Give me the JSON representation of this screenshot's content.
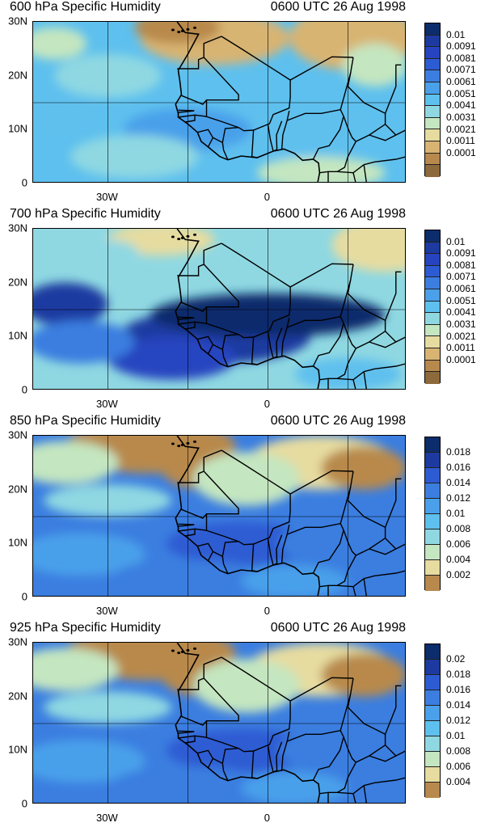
{
  "x_tick_labels": [
    "30W",
    "0"
  ],
  "y_tick_labels": [
    "30N",
    "20N",
    "10N",
    "0"
  ],
  "panels": [
    {
      "title": "600 hPa Specific Humidity",
      "time": "0600 UTC 26 Aug 1998",
      "colorbar_labels": [
        "0.01",
        "0.0091",
        "0.0081",
        "0.0071",
        "0.0061",
        "0.0051",
        "0.0041",
        "0.0031",
        "0.0021",
        "0.0011",
        "0.0001"
      ],
      "colorbar_colors": [
        "#0c2c6c",
        "#1c3aa0",
        "#2744c0",
        "#2d5bd3",
        "#3b7ee0",
        "#4aa0ea",
        "#5ec0ee",
        "#8fd8e2",
        "#c4e6c0",
        "#e6dca0",
        "#d8b472",
        "#b8894c",
        "#8c6a3c"
      ],
      "regime": "mid"
    },
    {
      "title": "700 hPa Specific Humidity",
      "time": "0600 UTC 26 Aug 1998",
      "colorbar_labels": [
        "0.01",
        "0.0091",
        "0.0081",
        "0.0071",
        "0.0061",
        "0.0051",
        "0.0041",
        "0.0031",
        "0.0021",
        "0.0011",
        "0.0001"
      ],
      "colorbar_colors": [
        "#0c2c6c",
        "#1c3aa0",
        "#2744c0",
        "#2d5bd3",
        "#3b7ee0",
        "#4aa0ea",
        "#5ec0ee",
        "#8fd8e2",
        "#c4e6c0",
        "#e6dca0",
        "#d8b472",
        "#b8894c",
        "#8c6a3c"
      ],
      "regime": "wet"
    },
    {
      "title": "850 hPa Specific Humidity",
      "time": "0600 UTC 26 Aug 1998",
      "colorbar_labels": [
        "0.018",
        "0.016",
        "0.014",
        "0.012",
        "0.01",
        "0.008",
        "0.006",
        "0.004",
        "0.002"
      ],
      "colorbar_colors": [
        "#0c2c6c",
        "#1c3aa0",
        "#2d5bd3",
        "#3b7ee0",
        "#4aa0ea",
        "#5ec0ee",
        "#8fd8e2",
        "#c4e6c0",
        "#e6dca0",
        "#b8894c"
      ],
      "regime": "low"
    },
    {
      "title": "925 hPa Specific Humidity",
      "time": "0600 UTC 26 Aug 1998",
      "colorbar_labels": [
        "0.02",
        "0.018",
        "0.016",
        "0.014",
        "0.012",
        "0.01",
        "0.008",
        "0.006",
        "0.004"
      ],
      "colorbar_colors": [
        "#0c2c6c",
        "#1c3aa0",
        "#2d5bd3",
        "#3b7ee0",
        "#4aa0ea",
        "#5ec0ee",
        "#8fd8e2",
        "#c4e6c0",
        "#e6dca0",
        "#b8894c"
      ],
      "regime": "low"
    }
  ]
}
